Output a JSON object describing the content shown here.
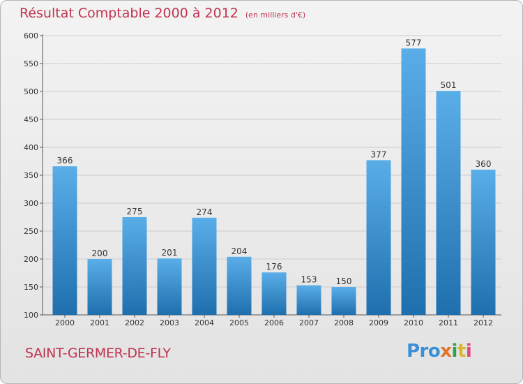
{
  "title": "Résultat Comptable 2000 à 2012",
  "subtitle": "(en milliers d'€)",
  "commune": "SAINT-GERMER-DE-FLY",
  "logo": {
    "p1": "Pro",
    "p2": "x",
    "p3": "i",
    "p4": "t",
    "p5": "i"
  },
  "colors": {
    "bar_light": "#5aaee8",
    "bar_dark": "#1f6fae",
    "title": "#c0334f",
    "grid": "#cccccc"
  },
  "chart_data": {
    "type": "bar",
    "categories": [
      "2000",
      "2001",
      "2002",
      "2003",
      "2004",
      "2005",
      "2006",
      "2007",
      "2008",
      "2009",
      "2010",
      "2011",
      "2012"
    ],
    "values": [
      366,
      200,
      275,
      201,
      274,
      204,
      176,
      153,
      150,
      377,
      577,
      501,
      360
    ],
    "ylim": [
      100,
      600
    ],
    "yticks": [
      100,
      150,
      200,
      250,
      300,
      350,
      400,
      450,
      500,
      550,
      600
    ],
    "grid": true,
    "xlabel": "",
    "ylabel": ""
  }
}
